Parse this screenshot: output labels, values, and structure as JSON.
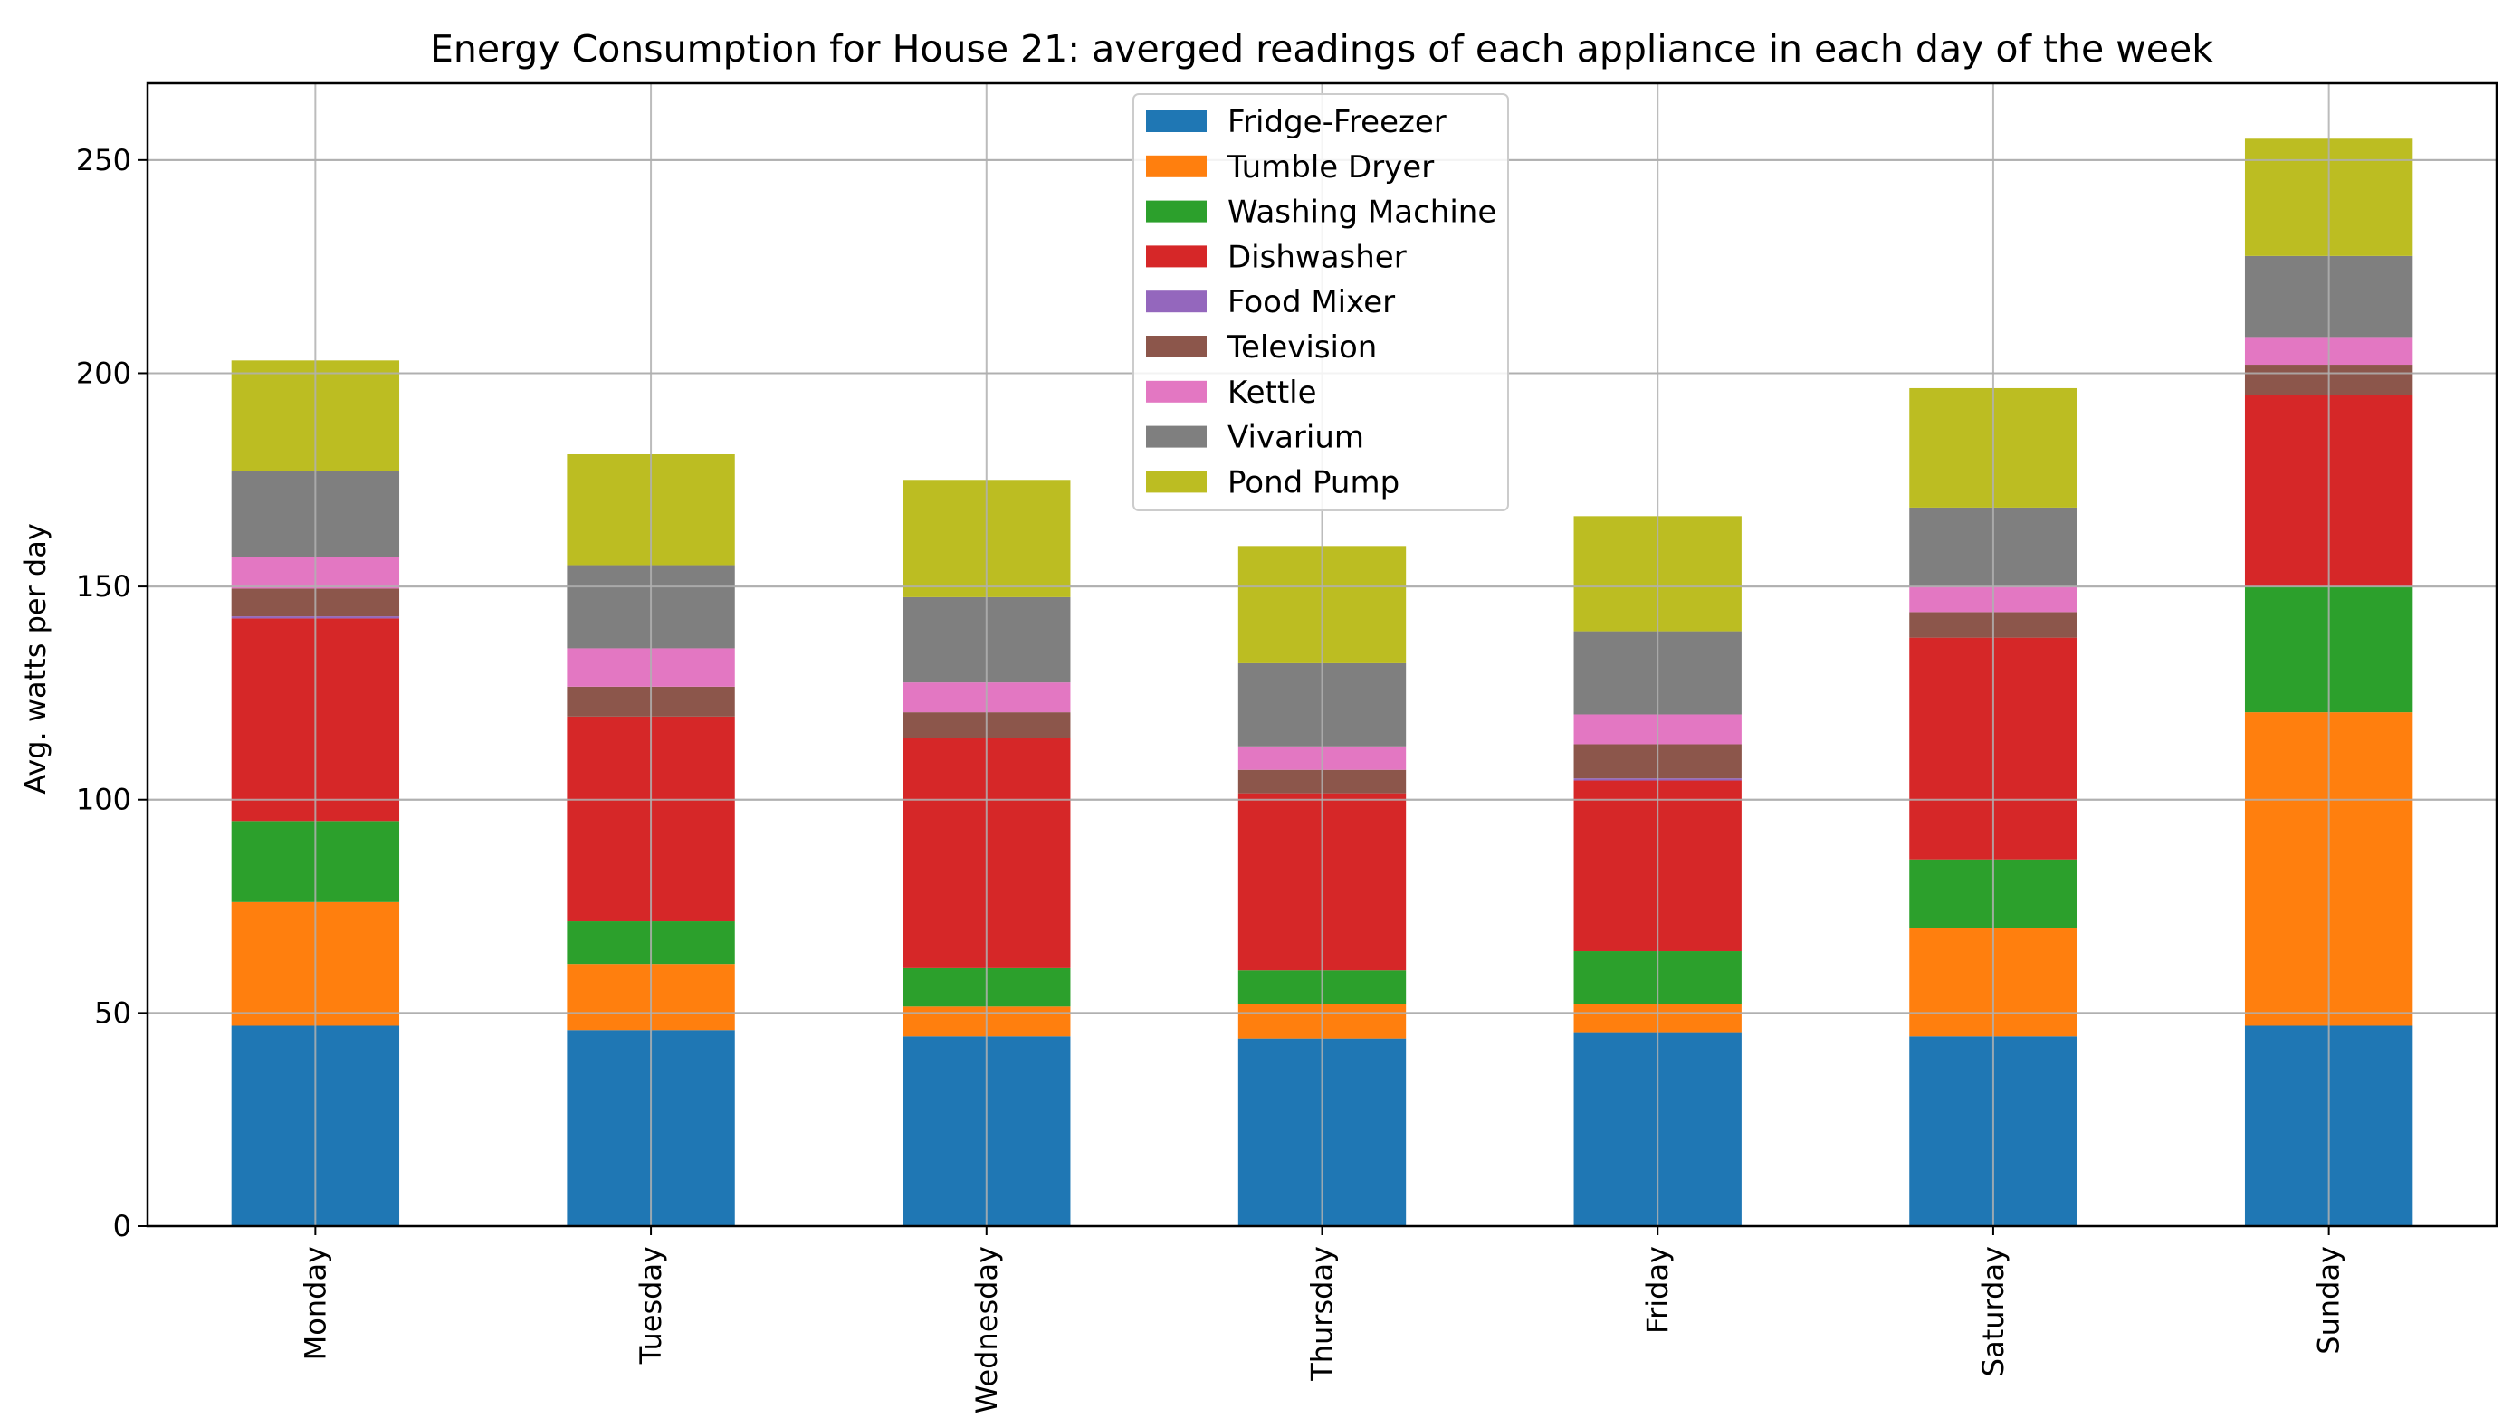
{
  "chart_data": {
    "type": "bar",
    "stacked": true,
    "title": "Energy Consumption for House 21: averged readings of each appliance in each day of the week",
    "xlabel": "",
    "ylabel": "Avg. watts per day",
    "ylim": [
      0,
      268
    ],
    "yticks": [
      0,
      50,
      100,
      150,
      200,
      250
    ],
    "grid": true,
    "legend_position": "upper-center",
    "categories": [
      "Monday",
      "Tuesday",
      "Wednesday",
      "Thursday",
      "Friday",
      "Saturday",
      "Sunday"
    ],
    "series": [
      {
        "name": "Fridge-Freezer",
        "color": "#1f77b4",
        "values": [
          47,
          46,
          44.5,
          44,
          45.5,
          44.5,
          47
        ]
      },
      {
        "name": "Tumble Dryer",
        "color": "#ff7f0e",
        "values": [
          29,
          15.5,
          7,
          8,
          6.5,
          25.5,
          73.5
        ]
      },
      {
        "name": "Washing Machine",
        "color": "#2ca02c",
        "values": [
          19,
          10,
          9,
          8,
          12.5,
          16,
          29.5
        ]
      },
      {
        "name": "Dishwasher",
        "color": "#d62728",
        "values": [
          47.5,
          48,
          54,
          41.5,
          40,
          52,
          45
        ]
      },
      {
        "name": "Food Mixer",
        "color": "#9467bd",
        "values": [
          0.5,
          0,
          0,
          0,
          0.5,
          0,
          0
        ]
      },
      {
        "name": "Television",
        "color": "#8c564b",
        "values": [
          6.5,
          7,
          6,
          5.5,
          8,
          6,
          7
        ]
      },
      {
        "name": "Kettle",
        "color": "#e377c2",
        "values": [
          7.5,
          9,
          7,
          5.5,
          7,
          6,
          6.5
        ]
      },
      {
        "name": "Vivarium",
        "color": "#7f7f7f",
        "values": [
          20,
          19.5,
          20,
          19.5,
          19.5,
          18.5,
          19
        ]
      },
      {
        "name": "Pond Pump",
        "color": "#bcbd22",
        "values": [
          26,
          26,
          27.5,
          27.5,
          27,
          28,
          27.5
        ]
      }
    ]
  }
}
